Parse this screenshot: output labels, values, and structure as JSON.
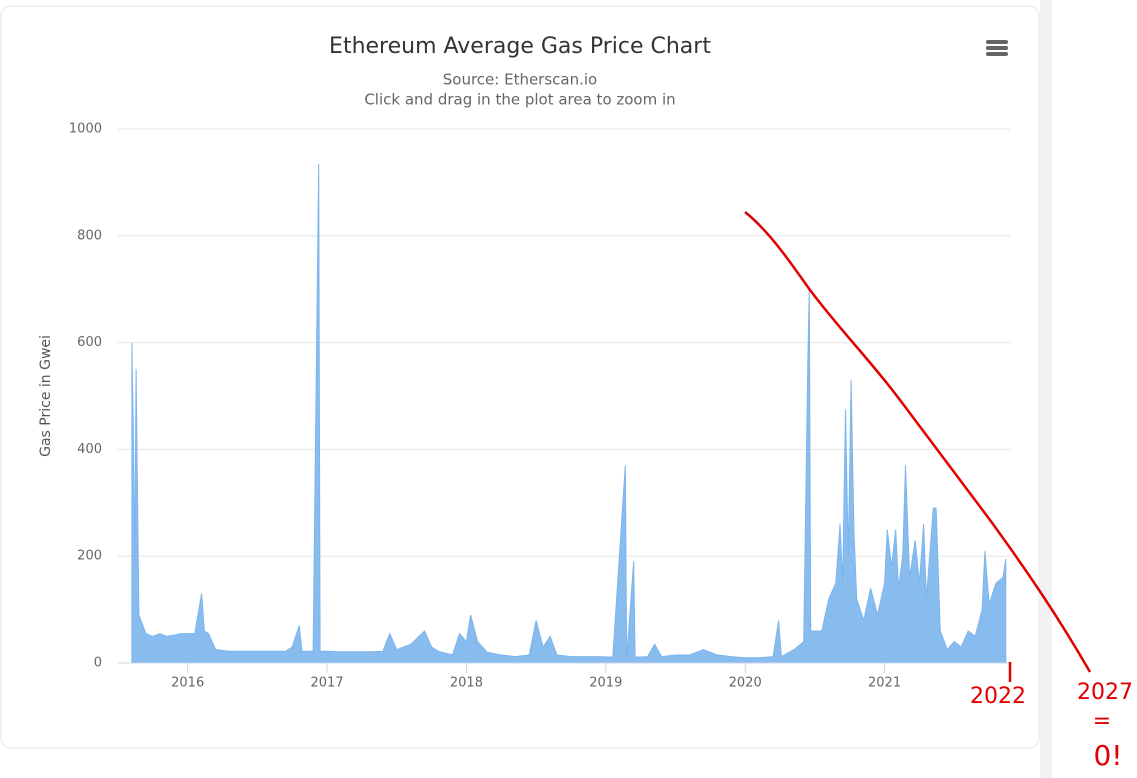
{
  "chart_data": {
    "type": "area",
    "title": "Ethereum Average Gas Price Chart",
    "subtitle": [
      "Source: Etherscan.io",
      "Click and drag in the plot area to zoom in"
    ],
    "y_label": "Gas Price in Gwei",
    "color": "#7cb5ec",
    "grid": true,
    "xlim": [
      2015.5,
      2021.9
    ],
    "xticks": [
      2016,
      2017,
      2018,
      2019,
      2020,
      2021
    ],
    "ylim": [
      0,
      1000
    ],
    "yticks": [
      0,
      200,
      400,
      600,
      800,
      1000
    ],
    "x": [
      2015.6,
      2015.61,
      2015.62,
      2015.63,
      2015.65,
      2015.7,
      2015.75,
      2015.8,
      2015.85,
      2015.9,
      2015.95,
      2016.0,
      2016.05,
      2016.1,
      2016.12,
      2016.15,
      2016.2,
      2016.3,
      2016.4,
      2016.5,
      2016.6,
      2016.7,
      2016.75,
      2016.8,
      2016.82,
      2016.9,
      2016.94,
      2016.95,
      2017.0,
      2017.1,
      2017.2,
      2017.3,
      2017.4,
      2017.45,
      2017.5,
      2017.6,
      2017.7,
      2017.75,
      2017.8,
      2017.9,
      2017.95,
      2018.0,
      2018.03,
      2018.08,
      2018.15,
      2018.25,
      2018.35,
      2018.45,
      2018.5,
      2018.55,
      2018.6,
      2018.65,
      2018.75,
      2018.85,
      2018.95,
      2019.05,
      2019.14,
      2019.15,
      2019.2,
      2019.21,
      2019.3,
      2019.35,
      2019.4,
      2019.5,
      2019.6,
      2019.7,
      2019.8,
      2019.9,
      2020.0,
      2020.1,
      2020.2,
      2020.24,
      2020.26,
      2020.35,
      2020.42,
      2020.45,
      2020.46,
      2020.47,
      2020.55,
      2020.6,
      2020.65,
      2020.68,
      2020.7,
      2020.72,
      2020.74,
      2020.76,
      2020.78,
      2020.8,
      2020.85,
      2020.9,
      2020.95,
      2021.0,
      2021.02,
      2021.05,
      2021.08,
      2021.1,
      2021.13,
      2021.15,
      2021.18,
      2021.22,
      2021.25,
      2021.28,
      2021.3,
      2021.35,
      2021.37,
      2021.4,
      2021.45,
      2021.5,
      2021.55,
      2021.6,
      2021.65,
      2021.7,
      2021.72,
      2021.75,
      2021.8,
      2021.85,
      2021.87
    ],
    "values": [
      600,
      440,
      190,
      550,
      90,
      55,
      50,
      55,
      50,
      52,
      55,
      55,
      55,
      130,
      60,
      55,
      25,
      22,
      22,
      22,
      22,
      22,
      30,
      70,
      22,
      22,
      935,
      22,
      22,
      21,
      21,
      21,
      22,
      55,
      25,
      35,
      60,
      30,
      22,
      15,
      55,
      40,
      90,
      40,
      20,
      15,
      12,
      15,
      80,
      30,
      50,
      15,
      12,
      12,
      12,
      11,
      370,
      11,
      190,
      11,
      12,
      35,
      12,
      15,
      15,
      25,
      15,
      12,
      10,
      10,
      12,
      80,
      12,
      25,
      40,
      575,
      700,
      60,
      60,
      120,
      150,
      260,
      150,
      475,
      200,
      530,
      250,
      120,
      80,
      140,
      90,
      150,
      250,
      180,
      250,
      140,
      200,
      370,
      160,
      230,
      150,
      260,
      120,
      290,
      290,
      60,
      25,
      40,
      30,
      60,
      50,
      100,
      210,
      110,
      150,
      160,
      195
    ],
    "annotations": [
      "2022",
      "2027",
      "=",
      "0!"
    ]
  }
}
